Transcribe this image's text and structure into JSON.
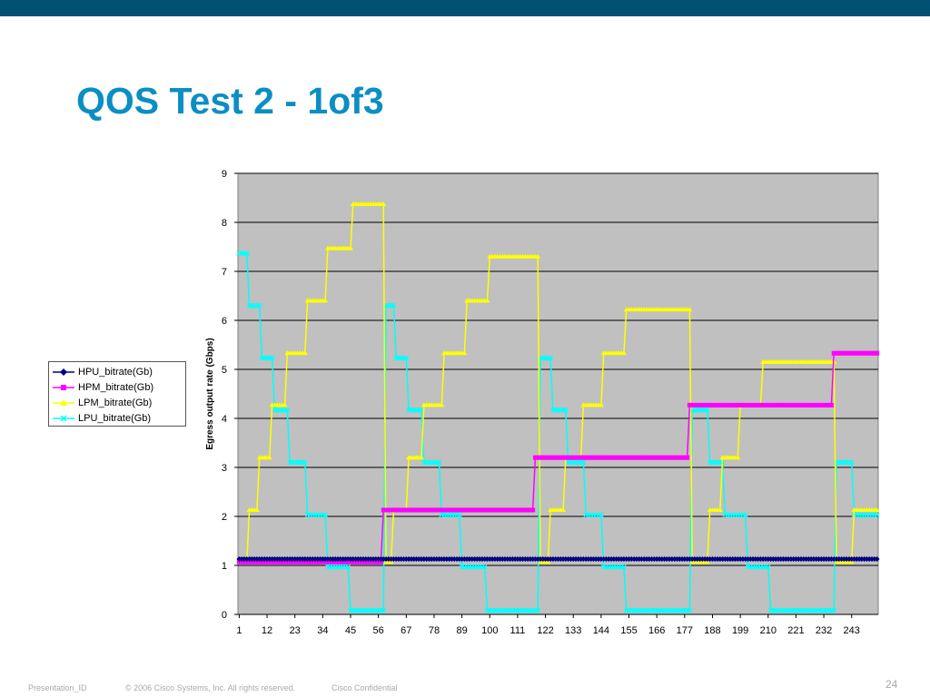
{
  "slide": {
    "title": "QOS Test 2 - 1of3",
    "page_number": "24",
    "footer": {
      "presentation_id": "Presentation_ID",
      "copyright": "© 2006 Cisco Systems, Inc. All rights reserved.",
      "confidential": "Cisco Confidential"
    }
  },
  "colors": {
    "topbar": "#005073",
    "title": "#0a8ec4",
    "plot_bg": "#c0c0c0"
  },
  "chart_data": {
    "type": "line",
    "title": "",
    "xlabel": "",
    "ylabel": "Egress output rate (Gbps)",
    "ylim": [
      0,
      9
    ],
    "xlim": [
      1,
      253
    ],
    "yticks": [
      "0",
      "1",
      "2",
      "3",
      "4",
      "5",
      "6",
      "7",
      "8",
      "9"
    ],
    "xticks": [
      1,
      12,
      23,
      34,
      45,
      56,
      67,
      78,
      89,
      100,
      111,
      122,
      133,
      144,
      155,
      166,
      177,
      188,
      199,
      210,
      221,
      232,
      243
    ],
    "grid": "horizontal",
    "legend_position": "left",
    "series": [
      {
        "name": "HPU_bitrate(Gb)",
        "color": "#000080",
        "marker": "diamond",
        "segments": [
          [
            1,
            253,
            1.13
          ]
        ]
      },
      {
        "name": "HPM_bitrate(Gb)",
        "color": "#ff00ff",
        "marker": "square",
        "segments": [
          [
            1,
            57,
            1.07
          ],
          [
            58,
            117,
            2.13
          ],
          [
            118,
            178,
            3.2
          ],
          [
            179,
            235,
            4.27
          ],
          [
            236,
            253,
            5.33
          ]
        ]
      },
      {
        "name": "LPM_bitrate(Gb)",
        "color": "#ffff00",
        "marker": "triangle",
        "segments": [
          [
            1,
            4,
            1.07
          ],
          [
            5,
            8,
            2.13
          ],
          [
            9,
            13,
            3.2
          ],
          [
            14,
            19,
            4.27
          ],
          [
            20,
            27,
            5.33
          ],
          [
            28,
            35,
            6.4
          ],
          [
            36,
            45,
            7.47
          ],
          [
            46,
            58,
            8.37
          ],
          [
            59,
            61,
            1.07
          ],
          [
            62,
            67,
            2.13
          ],
          [
            68,
            73,
            3.2
          ],
          [
            74,
            81,
            4.27
          ],
          [
            82,
            90,
            5.33
          ],
          [
            91,
            99,
            6.4
          ],
          [
            100,
            119,
            7.3
          ],
          [
            120,
            123,
            1.07
          ],
          [
            124,
            129,
            2.13
          ],
          [
            130,
            136,
            3.2
          ],
          [
            137,
            144,
            4.27
          ],
          [
            145,
            153,
            5.33
          ],
          [
            154,
            179,
            6.22
          ],
          [
            180,
            186,
            1.07
          ],
          [
            187,
            191,
            2.13
          ],
          [
            192,
            198,
            3.2
          ],
          [
            199,
            207,
            4.27
          ],
          [
            208,
            236,
            5.15
          ],
          [
            237,
            243,
            1.07
          ],
          [
            244,
            253,
            2.13
          ]
        ]
      },
      {
        "name": "LPU_bitrate(Gb)",
        "color": "#00ffff",
        "marker": "x",
        "segments": [
          [
            1,
            4,
            7.37
          ],
          [
            5,
            9,
            6.3
          ],
          [
            10,
            14,
            5.23
          ],
          [
            15,
            20,
            4.17
          ],
          [
            21,
            27,
            3.1
          ],
          [
            28,
            35,
            2.03
          ],
          [
            36,
            44,
            0.97
          ],
          [
            45,
            58,
            0.08
          ],
          [
            59,
            62,
            6.3
          ],
          [
            63,
            67,
            5.23
          ],
          [
            68,
            73,
            4.17
          ],
          [
            74,
            80,
            3.1
          ],
          [
            81,
            88,
            2.03
          ],
          [
            89,
            98,
            0.97
          ],
          [
            99,
            119,
            0.08
          ],
          [
            120,
            124,
            5.23
          ],
          [
            125,
            130,
            4.17
          ],
          [
            131,
            137,
            3.1
          ],
          [
            138,
            144,
            2.03
          ],
          [
            145,
            153,
            0.97
          ],
          [
            154,
            179,
            0.08
          ],
          [
            180,
            186,
            4.17
          ],
          [
            187,
            192,
            3.1
          ],
          [
            193,
            201,
            2.03
          ],
          [
            202,
            210,
            0.97
          ],
          [
            211,
            236,
            0.08
          ],
          [
            237,
            243,
            3.1
          ],
          [
            244,
            253,
            2.03
          ]
        ]
      }
    ]
  }
}
